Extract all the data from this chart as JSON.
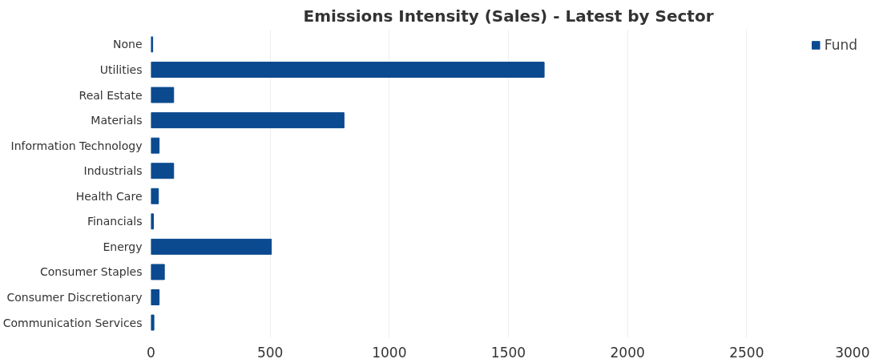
{
  "chart_data": {
    "type": "bar",
    "orientation": "horizontal",
    "title": "Emissions Intensity (Sales) - Latest by Sector",
    "categories": [
      "None",
      "Utilities",
      "Real Estate",
      "Materials",
      "Information Technology",
      "Industrials",
      "Health Care",
      "Financials",
      "Energy",
      "Consumer Staples",
      "Consumer Discretionary",
      "Communication Services"
    ],
    "series": [
      {
        "name": "Fund",
        "color": "#0b4a8f",
        "values": [
          7,
          1650,
          95,
          810,
          34,
          95,
          31,
          10,
          505,
          56,
          34,
          12
        ]
      }
    ],
    "xlim": [
      0,
      3000
    ],
    "xticks": [
      0,
      500,
      1000,
      1500,
      2000,
      2500,
      3000
    ],
    "grid": "x",
    "legend": "top right"
  }
}
